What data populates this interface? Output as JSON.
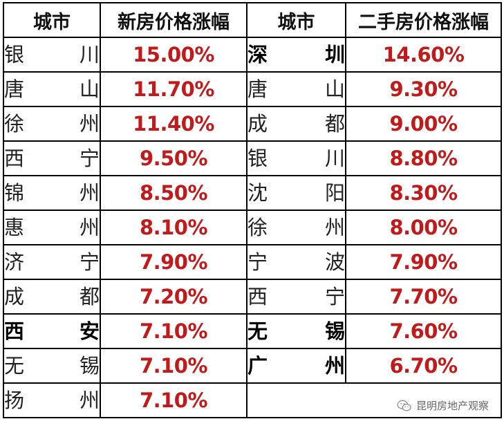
{
  "headers": {
    "city_left": "城市",
    "new_home": "新房价格涨幅",
    "city_right": "城市",
    "second_home": "二手房价格涨幅"
  },
  "new_home_rows": [
    {
      "c1": "银",
      "c2": "川",
      "value": "15.00%",
      "bold": false
    },
    {
      "c1": "唐",
      "c2": "山",
      "value": "11.70%",
      "bold": false
    },
    {
      "c1": "徐",
      "c2": "州",
      "value": "11.40%",
      "bold": false
    },
    {
      "c1": "西",
      "c2": "宁",
      "value": "9.50%",
      "bold": false
    },
    {
      "c1": "锦",
      "c2": "州",
      "value": "8.50%",
      "bold": false
    },
    {
      "c1": "惠",
      "c2": "州",
      "value": "8.10%",
      "bold": false
    },
    {
      "c1": "济",
      "c2": "宁",
      "value": "7.90%",
      "bold": false
    },
    {
      "c1": "成",
      "c2": "都",
      "value": "7.20%",
      "bold": false
    },
    {
      "c1": "西",
      "c2": "安",
      "value": "7.10%",
      "bold": true
    },
    {
      "c1": "无",
      "c2": "锡",
      "value": "7.10%",
      "bold": false
    },
    {
      "c1": "扬",
      "c2": "州",
      "value": "7.10%",
      "bold": false
    }
  ],
  "second_home_rows": [
    {
      "c1": "深",
      "c2": "圳",
      "value": "14.60%",
      "bold": true
    },
    {
      "c1": "唐",
      "c2": "山",
      "value": "9.30%",
      "bold": false
    },
    {
      "c1": "成",
      "c2": "都",
      "value": "9.00%",
      "bold": false
    },
    {
      "c1": "银",
      "c2": "川",
      "value": "8.80%",
      "bold": false
    },
    {
      "c1": "沈",
      "c2": "阳",
      "value": "8.30%",
      "bold": false
    },
    {
      "c1": "徐",
      "c2": "州",
      "value": "8.00%",
      "bold": false
    },
    {
      "c1": "宁",
      "c2": "波",
      "value": "7.90%",
      "bold": false
    },
    {
      "c1": "西",
      "c2": "宁",
      "value": "7.70%",
      "bold": false
    },
    {
      "c1": "无",
      "c2": "锡",
      "value": "7.60%",
      "bold": true
    },
    {
      "c1": "广",
      "c2": "州",
      "value": "6.70%",
      "bold": true
    }
  ],
  "watermark": {
    "text": "昆明房地产观察",
    "icon": "wechat-icon"
  },
  "colors": {
    "value_red": "#c01a1a",
    "border": "#000000"
  }
}
